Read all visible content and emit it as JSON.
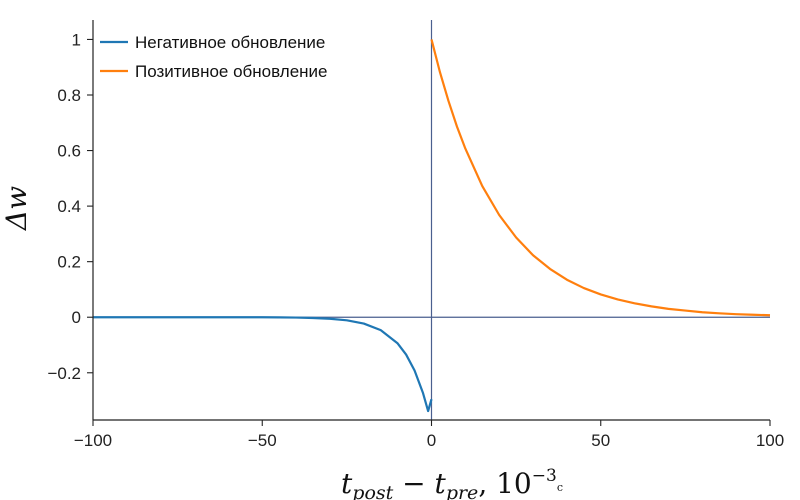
{
  "chart_data": {
    "type": "line",
    "xlim": [
      -100,
      100
    ],
    "ylim": [
      -0.37,
      1.07
    ],
    "x_ticks": [
      {
        "value": -100,
        "label": "−100"
      },
      {
        "value": -50,
        "label": "−50"
      },
      {
        "value": 0,
        "label": "0"
      },
      {
        "value": 50,
        "label": "50"
      },
      {
        "value": 100,
        "label": "100"
      }
    ],
    "y_ticks": [
      {
        "value": 1,
        "label": "1"
      },
      {
        "value": 0.8,
        "label": "0.8"
      },
      {
        "value": 0.6,
        "label": "0.6"
      },
      {
        "value": 0.4,
        "label": "0.4"
      },
      {
        "value": 0.2,
        "label": "0.2"
      },
      {
        "value": 0,
        "label": "0"
      },
      {
        "value": -0.2,
        "label": "−0.2"
      }
    ],
    "xlabel": {
      "t1": "t",
      "sub1": "post",
      "minus": " − ",
      "t2": "t",
      "sub2": "pre",
      "sep": ", 10",
      "exp": "−3",
      "unit": "с"
    },
    "ylabel": "Δw",
    "grid": false,
    "legend_position": "top-left",
    "reference_lines": {
      "x": 0,
      "y": 0,
      "color": "#4a5f8f"
    },
    "series": [
      {
        "name": "Негативное обновление",
        "color": "#1f77b4",
        "x": [
          -100,
          -90,
          -80,
          -70,
          -60,
          -50,
          -45,
          -40,
          -35,
          -30,
          -25,
          -20,
          -15,
          -10,
          -7.5,
          -5,
          -2.5,
          -1,
          0
        ],
        "y": [
          0,
          0,
          0,
          0,
          0,
          -0.0002,
          -0.0006,
          -0.0013,
          -0.0027,
          -0.0055,
          -0.0112,
          -0.0229,
          -0.0464,
          -0.0943,
          -0.1344,
          -0.1917,
          -0.2733,
          -0.3377,
          -0.295
        ]
      },
      {
        "name": "Позитивное обновление",
        "color": "#ff7f0e",
        "x": [
          0,
          2.5,
          5,
          7.5,
          10,
          15,
          20,
          25,
          30,
          35,
          40,
          45,
          50,
          55,
          60,
          65,
          70,
          75,
          80,
          85,
          90,
          95,
          100
        ],
        "y": [
          1.0,
          0.882,
          0.779,
          0.687,
          0.607,
          0.472,
          0.368,
          0.287,
          0.223,
          0.174,
          0.135,
          0.105,
          0.082,
          0.064,
          0.05,
          0.039,
          0.03,
          0.024,
          0.018,
          0.014,
          0.011,
          0.009,
          0.007
        ]
      }
    ]
  }
}
